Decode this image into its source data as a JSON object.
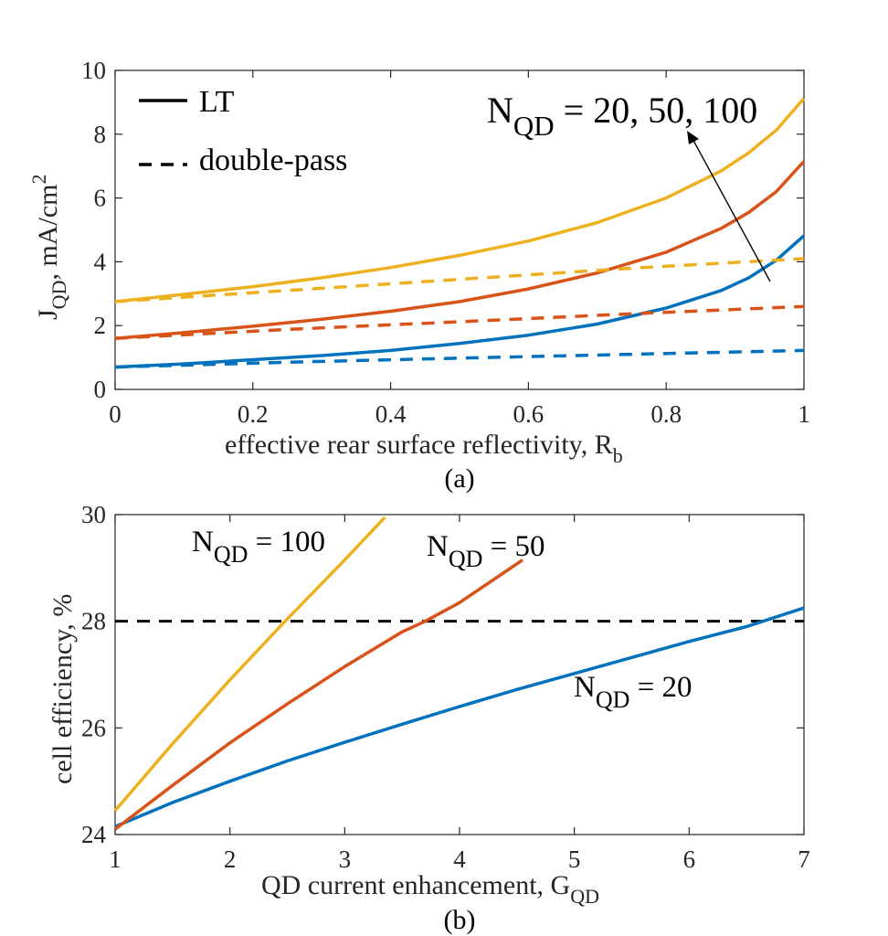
{
  "colors": {
    "blue": "#0072BD",
    "orange": "#D95319",
    "yellow": "#EDB120",
    "black": "#000000"
  },
  "chart_data": [
    {
      "type": "line",
      "panel_label": "(a)",
      "xlabel": {
        "main": "effective rear surface reflectivity, R",
        "sub": "b"
      },
      "ylabel": {
        "main": "J",
        "sub": "QD",
        "rest": ", mA/cm",
        "sup": "2"
      },
      "xlim": [
        0,
        1
      ],
      "ylim": [
        0,
        10
      ],
      "xticks": [
        "0",
        "0.2",
        "0.4",
        "0.6",
        "0.8",
        "1"
      ],
      "yticks": [
        "0",
        "2",
        "4",
        "6",
        "8",
        "10"
      ],
      "legend": {
        "position": "top-left",
        "entries": [
          {
            "label": "LT",
            "style": "solid"
          },
          {
            "label": "double-pass",
            "style": "dashed"
          }
        ]
      },
      "annotation": {
        "main": "N",
        "sub": "QD",
        "rest": " = 20, 50, 100"
      },
      "series": [
        {
          "style": "solid",
          "color": "#0072BD",
          "x": [
            0,
            0.1,
            0.2,
            0.3,
            0.4,
            0.5,
            0.6,
            0.7,
            0.8,
            0.88,
            0.92,
            0.96,
            1.0
          ],
          "y": [
            0.7,
            0.8,
            0.93,
            1.06,
            1.22,
            1.44,
            1.7,
            2.05,
            2.55,
            3.1,
            3.5,
            4.05,
            4.82
          ]
        },
        {
          "style": "solid",
          "color": "#D95319",
          "x": [
            0,
            0.1,
            0.2,
            0.3,
            0.4,
            0.5,
            0.6,
            0.7,
            0.8,
            0.88,
            0.92,
            0.96,
            1.0
          ],
          "y": [
            1.6,
            1.78,
            1.98,
            2.2,
            2.45,
            2.75,
            3.15,
            3.65,
            4.3,
            5.05,
            5.55,
            6.2,
            7.15
          ]
        },
        {
          "style": "solid",
          "color": "#EDB120",
          "x": [
            0,
            0.1,
            0.2,
            0.3,
            0.4,
            0.5,
            0.6,
            0.7,
            0.8,
            0.88,
            0.92,
            0.96,
            1.0
          ],
          "y": [
            2.75,
            2.98,
            3.22,
            3.5,
            3.82,
            4.2,
            4.65,
            5.23,
            6.0,
            6.85,
            7.42,
            8.13,
            9.12
          ]
        },
        {
          "style": "dashed",
          "color": "#0072BD",
          "x": [
            0,
            0.25,
            0.5,
            0.75,
            1.0
          ],
          "y": [
            0.7,
            0.85,
            0.98,
            1.1,
            1.22
          ]
        },
        {
          "style": "dashed",
          "color": "#D95319",
          "x": [
            0,
            0.25,
            0.5,
            0.75,
            1.0
          ],
          "y": [
            1.6,
            1.88,
            2.12,
            2.37,
            2.6
          ]
        },
        {
          "style": "dashed",
          "color": "#EDB120",
          "x": [
            0,
            0.25,
            0.5,
            0.75,
            1.0
          ],
          "y": [
            2.75,
            3.1,
            3.45,
            3.8,
            4.1
          ]
        }
      ]
    },
    {
      "type": "line",
      "panel_label": "(b)",
      "xlabel": {
        "main": "QD current enhancement, G",
        "sub": "QD"
      },
      "ylabel": {
        "main": "cell efficiency, %"
      },
      "xlim": [
        1,
        7
      ],
      "ylim": [
        24,
        30
      ],
      "xticks": [
        "1",
        "2",
        "3",
        "4",
        "5",
        "6",
        "7"
      ],
      "yticks": [
        "24",
        "26",
        "28",
        "30"
      ],
      "reference_line": {
        "y": 28,
        "style": "dashed",
        "color": "#000000"
      },
      "series_labels": [
        {
          "main": "N",
          "sub": "QD",
          "rest": " = 100"
        },
        {
          "main": "N",
          "sub": "QD",
          "rest": " = 50"
        },
        {
          "main": "N",
          "sub": "QD",
          "rest": " = 20"
        }
      ],
      "series": [
        {
          "color": "#0072BD",
          "x": [
            1,
            1.5,
            2,
            2.5,
            3,
            3.5,
            4,
            4.5,
            5,
            5.5,
            6,
            6.5,
            7
          ],
          "y": [
            24.15,
            24.6,
            25.0,
            25.38,
            25.73,
            26.07,
            26.4,
            26.72,
            27.02,
            27.32,
            27.62,
            27.9,
            28.25
          ]
        },
        {
          "color": "#D95319",
          "x": [
            1,
            1.5,
            2,
            2.5,
            3,
            3.5,
            3.7,
            4,
            4.55
          ],
          "y": [
            24.1,
            24.92,
            25.72,
            26.45,
            27.15,
            27.8,
            28.0,
            28.35,
            29.15
          ]
        },
        {
          "color": "#EDB120",
          "x": [
            1,
            1.5,
            2,
            2.48,
            3,
            3.35
          ],
          "y": [
            24.45,
            25.7,
            26.9,
            28.0,
            29.15,
            29.95
          ]
        }
      ]
    }
  ]
}
